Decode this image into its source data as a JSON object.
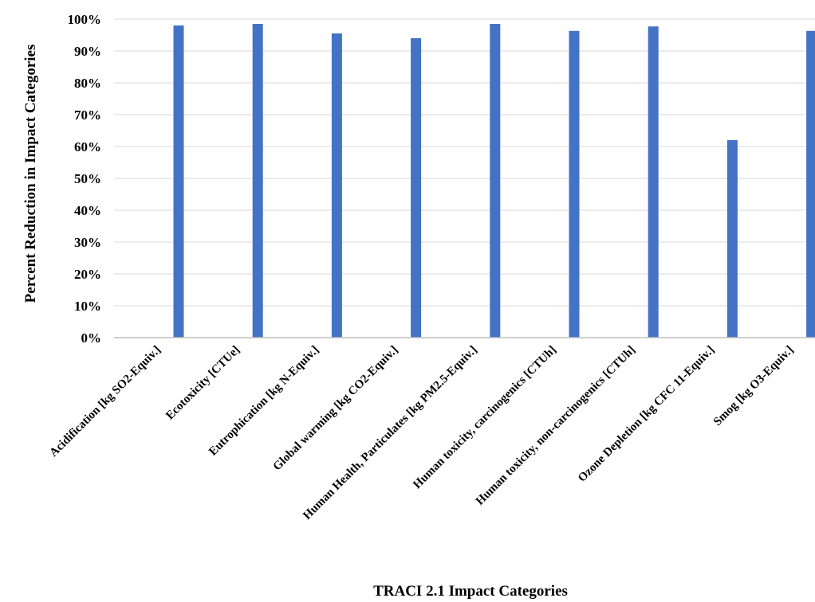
{
  "chart_data": {
    "type": "bar",
    "title": "",
    "xlabel": "TRACI 2.1 Impact Categories",
    "ylabel": "Percent Reduction in Impact Categories",
    "categories": [
      "Acidification [kg SO2-Equiv.]",
      "Ecotoxicity [CTUe]",
      "Eutrophication [kg N-Equiv.]",
      "Global warming [kg CO2-Equiv.]",
      "Human Health, Particulates [kg PM2.5-Equiv.]",
      "Human toxicity, carcinogenics [CTUh]",
      "Human toxicity, non-carcinogenics [CTUh]",
      "Ozone Depletion [kg CFC 11-Equiv.]",
      "Smog [kg O3-Equiv.]"
    ],
    "values": [
      98,
      98.5,
      95.5,
      94,
      98.5,
      96.3,
      97.7,
      62,
      96.3
    ],
    "ylim": [
      0,
      100
    ],
    "yticks": [
      "0%",
      "10%",
      "20%",
      "30%",
      "40%",
      "50%",
      "60%",
      "70%",
      "80%",
      "90%",
      "100%"
    ],
    "grid": true,
    "legend": "none",
    "bar_color": "#4472c4",
    "grid_color": "#d9d9d9"
  }
}
